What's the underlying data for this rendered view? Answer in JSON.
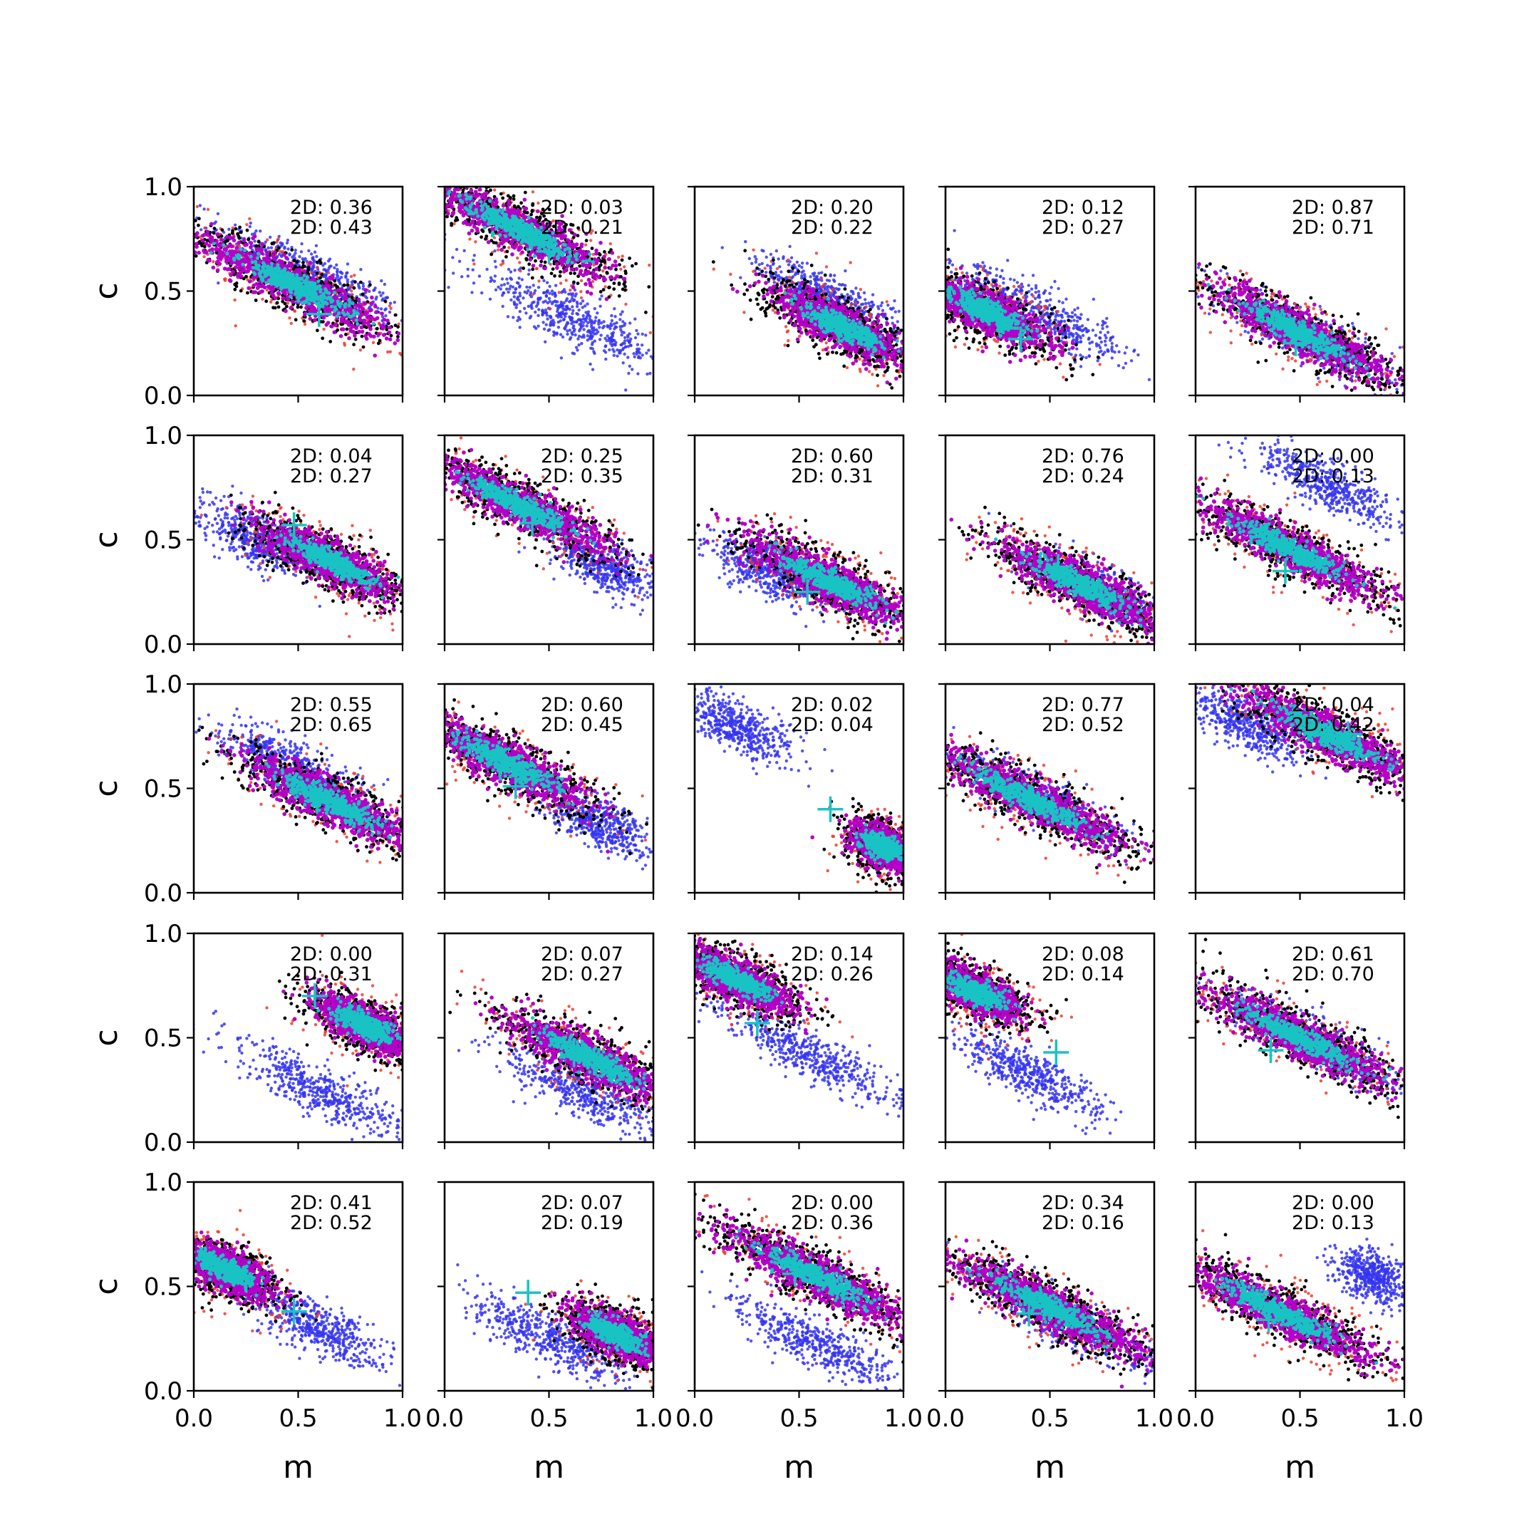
{
  "colors": {
    "sample_a": "#3535f0",
    "sample_b": "#f03a2c",
    "outer": "#000000",
    "middle": "#b400c8",
    "core": "#19c3c3",
    "marker": "#19c3c3"
  },
  "chart_data": {
    "type": "scatter",
    "layout": {
      "rows": 5,
      "cols": 5
    },
    "xlabel": "m",
    "ylabel": "c",
    "xlim": [
      0,
      1
    ],
    "ylim": [
      0,
      1
    ],
    "xticks": [
      "0.0",
      "0.5",
      "1.0"
    ],
    "yticks": [
      "0.0",
      "0.5",
      "1.0"
    ],
    "grid": false,
    "panels": [
      {
        "stats": [
          "2D: 0.36",
          "2D: 0.43"
        ],
        "main": {
          "center": [
            0.48,
            0.53
          ],
          "width": 1.0,
          "height": 0.06
        },
        "blue": {
          "center": [
            0.55,
            0.58
          ],
          "width": 0.85,
          "height": 0.05
        },
        "marker": [
          0.6,
          0.39
        ]
      },
      {
        "stats": [
          "2D: 0.03",
          "2D: 0.21"
        ],
        "main": {
          "center": [
            0.35,
            0.8
          ],
          "width": 0.95,
          "height": 0.06
        },
        "blue": {
          "center": [
            0.6,
            0.37
          ],
          "width": 0.85,
          "height": 0.05
        },
        "marker": [
          0.5,
          0.69
        ]
      },
      {
        "stats": [
          "2D: 0.20",
          "2D: 0.22"
        ],
        "main": {
          "center": [
            0.7,
            0.33
          ],
          "width": 0.7,
          "height": 0.06
        },
        "blue": {
          "center": [
            0.65,
            0.46
          ],
          "width": 0.7,
          "height": 0.05
        },
        "marker": [
          0.69,
          0.31
        ]
      },
      {
        "stats": [
          "2D: 0.12",
          "2D: 0.27"
        ],
        "main": {
          "center": [
            0.2,
            0.4
          ],
          "width": 0.65,
          "height": 0.06
        },
        "blue": {
          "center": [
            0.45,
            0.39
          ],
          "width": 0.9,
          "height": 0.05
        },
        "marker": [
          0.36,
          0.27
        ]
      },
      {
        "stats": [
          "2D: 0.87",
          "2D: 0.71"
        ],
        "main": {
          "center": [
            0.5,
            0.3
          ],
          "width": 1.0,
          "height": 0.06
        },
        "blue": {
          "center": [
            0.55,
            0.28
          ],
          "width": 0.9,
          "height": 0.05
        },
        "marker": [
          0.48,
          0.25
        ]
      },
      {
        "stats": [
          "2D: 0.04",
          "2D: 0.27"
        ],
        "main": {
          "center": [
            0.65,
            0.4
          ],
          "width": 0.75,
          "height": 0.06
        },
        "blue": {
          "center": [
            0.3,
            0.5
          ],
          "width": 0.6,
          "height": 0.05
        },
        "marker": [
          0.48,
          0.57
        ]
      },
      {
        "stats": [
          "2D: 0.25",
          "2D: 0.35"
        ],
        "main": {
          "center": [
            0.35,
            0.67
          ],
          "width": 0.95,
          "height": 0.06
        },
        "blue": {
          "center": [
            0.75,
            0.38
          ],
          "width": 0.5,
          "height": 0.05
        },
        "marker": [
          0.42,
          0.58
        ]
      },
      {
        "stats": [
          "2D: 0.60",
          "2D: 0.31"
        ],
        "main": {
          "center": [
            0.65,
            0.3
          ],
          "width": 0.85,
          "height": 0.06
        },
        "blue": {
          "center": [
            0.35,
            0.35
          ],
          "width": 0.5,
          "height": 0.05
        },
        "marker": [
          0.54,
          0.25
        ]
      },
      {
        "stats": [
          "2D: 0.76",
          "2D: 0.24"
        ],
        "main": {
          "center": [
            0.65,
            0.28
          ],
          "width": 0.85,
          "height": 0.06
        },
        "blue": {
          "center": [
            0.72,
            0.27
          ],
          "width": 0.6,
          "height": 0.05
        },
        "marker": [
          0.54,
          0.37
        ]
      },
      {
        "stats": [
          "2D: 0.00",
          "2D: 0.13"
        ],
        "main": {
          "center": [
            0.45,
            0.46
          ],
          "width": 1.0,
          "height": 0.06
        },
        "blue": {
          "center": [
            0.65,
            0.75
          ],
          "width": 0.7,
          "height": 0.05
        },
        "marker": [
          0.43,
          0.35
        ]
      },
      {
        "stats": [
          "2D: 0.55",
          "2D: 0.65"
        ],
        "main": {
          "center": [
            0.65,
            0.44
          ],
          "width": 0.85,
          "height": 0.06
        },
        "blue": {
          "center": [
            0.45,
            0.62
          ],
          "width": 0.7,
          "height": 0.05
        },
        "marker": [
          0.59,
          0.44
        ]
      },
      {
        "stats": [
          "2D: 0.60",
          "2D: 0.45"
        ],
        "main": {
          "center": [
            0.3,
            0.62
          ],
          "width": 0.85,
          "height": 0.06
        },
        "blue": {
          "center": [
            0.75,
            0.33
          ],
          "width": 0.5,
          "height": 0.05
        },
        "marker": [
          0.34,
          0.51
        ]
      },
      {
        "stats": [
          "2D: 0.02",
          "2D: 0.04"
        ],
        "main": {
          "center": [
            0.9,
            0.22
          ],
          "width": 0.35,
          "height": 0.06
        },
        "blue": {
          "center": [
            0.2,
            0.79
          ],
          "width": 0.55,
          "height": 0.05
        },
        "marker": [
          0.65,
          0.4
        ]
      },
      {
        "stats": [
          "2D: 0.77",
          "2D: 0.52"
        ],
        "main": {
          "center": [
            0.4,
            0.45
          ],
          "width": 1.0,
          "height": 0.06
        },
        "blue": {
          "center": [
            0.45,
            0.45
          ],
          "width": 0.9,
          "height": 0.05
        },
        "marker": [
          0.4,
          0.44
        ]
      },
      {
        "stats": [
          "2D: 0.04",
          "2D: 0.42"
        ],
        "main": {
          "center": [
            0.65,
            0.75
          ],
          "width": 1.0,
          "height": 0.06
        },
        "blue": {
          "center": [
            0.25,
            0.8
          ],
          "width": 0.55,
          "height": 0.05
        },
        "marker": [
          0.73,
          0.76
        ]
      },
      {
        "stats": [
          "2D: 0.00",
          "2D: 0.31"
        ],
        "main": {
          "center": [
            0.82,
            0.56
          ],
          "width": 0.55,
          "height": 0.06
        },
        "blue": {
          "center": [
            0.6,
            0.25
          ],
          "width": 0.85,
          "height": 0.05
        },
        "marker": [
          0.58,
          0.7
        ]
      },
      {
        "stats": [
          "2D: 0.07",
          "2D: 0.27"
        ],
        "main": {
          "center": [
            0.7,
            0.4
          ],
          "width": 0.85,
          "height": 0.06
        },
        "blue": {
          "center": [
            0.65,
            0.25
          ],
          "width": 0.75,
          "height": 0.05
        },
        "marker": [
          0.62,
          0.42
        ]
      },
      {
        "stats": [
          "2D: 0.14",
          "2D: 0.26"
        ],
        "main": {
          "center": [
            0.2,
            0.78
          ],
          "width": 0.6,
          "height": 0.06
        },
        "blue": {
          "center": [
            0.55,
            0.42
          ],
          "width": 0.85,
          "height": 0.05
        },
        "marker": [
          0.3,
          0.57
        ]
      },
      {
        "stats": [
          "2D: 0.08",
          "2D: 0.14"
        ],
        "main": {
          "center": [
            0.15,
            0.72
          ],
          "width": 0.5,
          "height": 0.06
        },
        "blue": {
          "center": [
            0.4,
            0.33
          ],
          "width": 0.75,
          "height": 0.05
        },
        "marker": [
          0.53,
          0.43
        ]
      },
      {
        "stats": [
          "2D: 0.61",
          "2D: 0.70"
        ],
        "main": {
          "center": [
            0.5,
            0.5
          ],
          "width": 1.0,
          "height": 0.06
        },
        "blue": {
          "center": [
            0.55,
            0.5
          ],
          "width": 0.9,
          "height": 0.05
        },
        "marker": [
          0.36,
          0.44
        ]
      },
      {
        "stats": [
          "2D: 0.41",
          "2D: 0.52"
        ],
        "main": {
          "center": [
            0.15,
            0.58
          ],
          "width": 0.5,
          "height": 0.06
        },
        "blue": {
          "center": [
            0.6,
            0.3
          ],
          "width": 0.6,
          "height": 0.05
        },
        "marker": [
          0.48,
          0.38
        ]
      },
      {
        "stats": [
          "2D: 0.07",
          "2D: 0.19"
        ],
        "main": {
          "center": [
            0.82,
            0.27
          ],
          "width": 0.5,
          "height": 0.06
        },
        "blue": {
          "center": [
            0.5,
            0.25
          ],
          "width": 0.75,
          "height": 0.05
        },
        "marker": [
          0.4,
          0.47
        ]
      },
      {
        "stats": [
          "2D: 0.00",
          "2D: 0.36"
        ],
        "main": {
          "center": [
            0.58,
            0.55
          ],
          "width": 1.0,
          "height": 0.06
        },
        "blue": {
          "center": [
            0.6,
            0.21
          ],
          "width": 0.8,
          "height": 0.05
        },
        "marker": [
          0.48,
          0.56
        ]
      },
      {
        "stats": [
          "2D: 0.34",
          "2D: 0.16"
        ],
        "main": {
          "center": [
            0.5,
            0.4
          ],
          "width": 1.0,
          "height": 0.06
        },
        "blue": {
          "center": [
            0.55,
            0.35
          ],
          "width": 0.9,
          "height": 0.05
        },
        "marker": [
          0.4,
          0.37
        ]
      },
      {
        "stats": [
          "2D: 0.00",
          "2D: 0.13"
        ],
        "main": {
          "center": [
            0.4,
            0.38
          ],
          "width": 1.0,
          "height": 0.06
        },
        "blue": {
          "center": [
            0.85,
            0.55
          ],
          "width": 0.35,
          "height": 0.05
        },
        "marker": [
          0.35,
          0.34
        ]
      }
    ]
  }
}
